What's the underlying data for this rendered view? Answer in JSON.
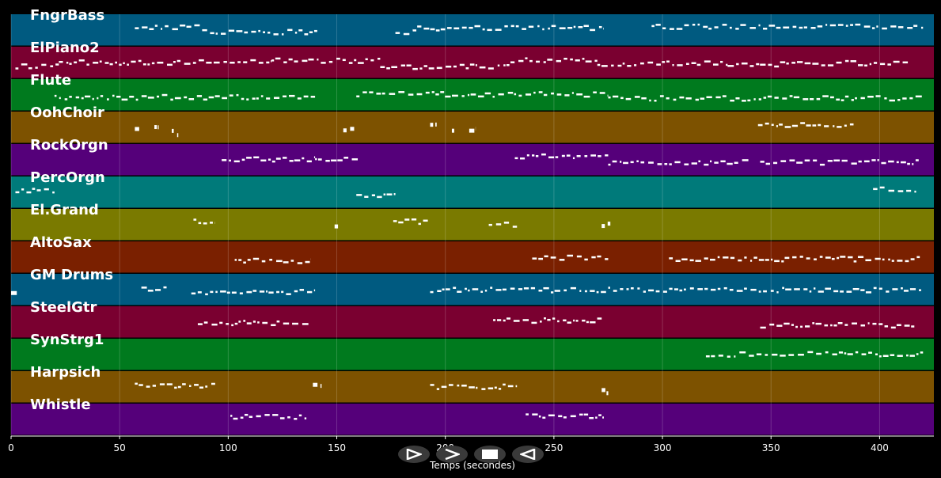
{
  "colors": {
    "background": "#000000",
    "note": "#ffffff",
    "grid": "#ffffff",
    "control_bg": "#3a3a3a"
  },
  "tracks": [
    {
      "name": "FngrBass",
      "color": "#005a80"
    },
    {
      "name": "ElPiano2",
      "color": "#7a0030"
    },
    {
      "name": "Flute",
      "color": "#007a1e"
    },
    {
      "name": "OohChoir",
      "color": "#7d5200"
    },
    {
      "name": "RockOrgn",
      "color": "#55007a"
    },
    {
      "name": "PercOrgn",
      "color": "#007a7a"
    },
    {
      "name": "El.Grand",
      "color": "#7a7a00"
    },
    {
      "name": "AltoSax",
      "color": "#7a2000"
    },
    {
      "name": "GM Drums",
      "color": "#005a80"
    },
    {
      "name": "SteelGtr",
      "color": "#7a0030"
    },
    {
      "name": "SynStrg1",
      "color": "#007a1e"
    },
    {
      "name": "Harpsich",
      "color": "#7d5200"
    },
    {
      "name": "Whistle",
      "color": "#55007a"
    }
  ],
  "xaxis": {
    "label": "Temps (secondes)",
    "min": 0,
    "max": 425,
    "ticks": [
      0,
      50,
      100,
      150,
      200,
      250,
      300,
      350,
      400
    ]
  },
  "controls": [
    {
      "name": "play-icon",
      "label": "play"
    },
    {
      "name": "next-icon",
      "label": "forward"
    },
    {
      "name": "stop-icon",
      "label": "stop"
    },
    {
      "name": "back-icon",
      "label": "rewind"
    }
  ],
  "tracks_notes": [
    [
      [
        57,
        88
      ],
      [
        88,
        141
      ],
      [
        177,
        185
      ],
      [
        185,
        273
      ],
      [
        295,
        420
      ]
    ],
    [
      [
        2,
        22
      ],
      [
        22,
        120
      ],
      [
        120,
        170
      ],
      [
        170,
        230
      ],
      [
        230,
        270
      ],
      [
        270,
        330
      ],
      [
        330,
        380
      ],
      [
        380,
        413
      ]
    ],
    [
      [
        20,
        140
      ],
      [
        159,
        275
      ],
      [
        275,
        420
      ]
    ],
    [
      [
        57,
        59
      ],
      [
        66,
        68
      ],
      [
        74,
        77
      ],
      [
        153,
        158
      ],
      [
        193,
        196
      ],
      [
        203,
        205
      ],
      [
        211,
        214
      ],
      [
        344,
        388
      ]
    ],
    [
      [
        97,
        140
      ],
      [
        140,
        160
      ],
      [
        232,
        275
      ],
      [
        275,
        340
      ],
      [
        345,
        418
      ]
    ],
    [
      [
        2,
        20
      ],
      [
        159,
        177
      ],
      [
        397,
        418
      ]
    ],
    [
      [
        84,
        94
      ],
      [
        149,
        152
      ],
      [
        176,
        193
      ],
      [
        220,
        233
      ],
      [
        272,
        276
      ]
    ],
    [
      [
        103,
        138
      ],
      [
        240,
        275
      ],
      [
        303,
        419
      ]
    ],
    [
      [
        0,
        3
      ],
      [
        60,
        72
      ],
      [
        83,
        140
      ],
      [
        193,
        420
      ]
    ],
    [
      [
        86,
        137
      ],
      [
        222,
        272
      ],
      [
        345,
        416
      ]
    ],
    [
      [
        320,
        420
      ]
    ],
    [
      [
        57,
        94
      ],
      [
        139,
        143
      ],
      [
        193,
        233
      ],
      [
        272,
        276
      ]
    ],
    [
      [
        101,
        136
      ],
      [
        237,
        273
      ]
    ]
  ]
}
